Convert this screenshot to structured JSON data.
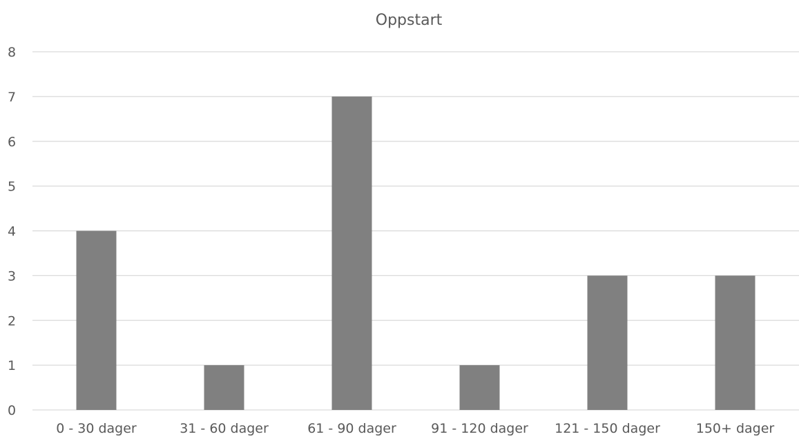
{
  "chart_data": {
    "type": "bar",
    "title": "Oppstart",
    "xlabel": "",
    "ylabel": "",
    "categories": [
      "0 - 30 dager",
      "31 - 60 dager",
      "61 - 90 dager",
      "91 - 120 dager",
      "121 - 150 dager",
      "150+ dager"
    ],
    "values": [
      4,
      1,
      7,
      1,
      3,
      3
    ],
    "ylim": [
      0,
      8
    ],
    "yticks": [
      "0",
      "1",
      "2",
      "3",
      "4",
      "5",
      "6",
      "7",
      "8"
    ],
    "grid": true,
    "legend": "none",
    "bar_color": "#808080"
  }
}
